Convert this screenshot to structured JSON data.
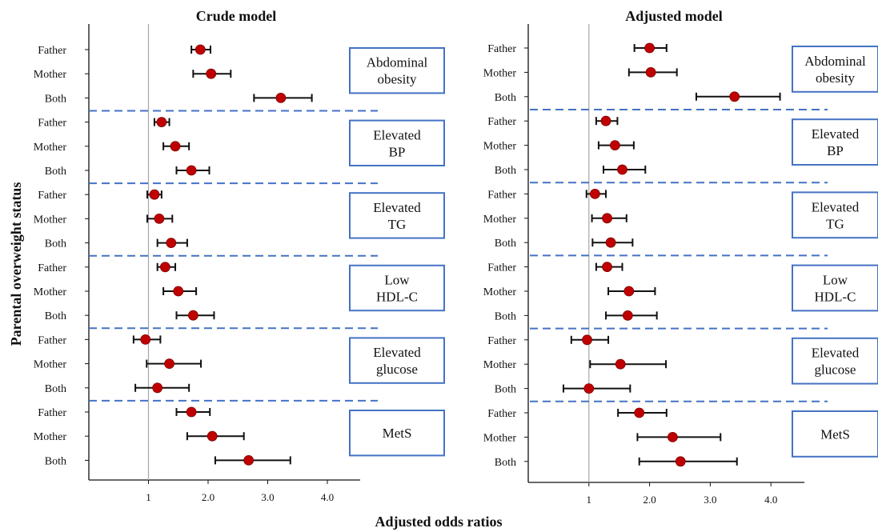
{
  "chart_data": [
    {
      "type": "forest",
      "title": "Crude model",
      "x_ticks": [
        "1",
        "2.0",
        "3.0",
        "4.0"
      ],
      "x_tick_values": [
        1,
        2,
        3,
        4
      ],
      "xlim": [
        0,
        4.5
      ],
      "reference_line": 1,
      "groups": [
        {
          "label_lines": [
            "Abdominal",
            "obesity"
          ],
          "rows": [
            {
              "label": "Father",
              "or": 1.87,
              "lo": 1.72,
              "hi": 2.04
            },
            {
              "label": "Mother",
              "or": 2.05,
              "lo": 1.75,
              "hi": 2.38
            },
            {
              "label": "Both",
              "or": 3.22,
              "lo": 2.77,
              "hi": 3.74
            }
          ]
        },
        {
          "label_lines": [
            "Elevated",
            "BP"
          ],
          "rows": [
            {
              "label": "Father",
              "or": 1.22,
              "lo": 1.1,
              "hi": 1.35
            },
            {
              "label": "Mother",
              "or": 1.45,
              "lo": 1.25,
              "hi": 1.68
            },
            {
              "label": "Both",
              "or": 1.72,
              "lo": 1.47,
              "hi": 2.02
            }
          ]
        },
        {
          "label_lines": [
            "Elevated",
            "TG"
          ],
          "rows": [
            {
              "label": "Father",
              "or": 1.1,
              "lo": 0.98,
              "hi": 1.22
            },
            {
              "label": "Mother",
              "or": 1.18,
              "lo": 0.98,
              "hi": 1.4
            },
            {
              "label": "Both",
              "or": 1.38,
              "lo": 1.15,
              "hi": 1.65
            }
          ]
        },
        {
          "label_lines": [
            "Low",
            "HDL-C"
          ],
          "rows": [
            {
              "label": "Father",
              "or": 1.28,
              "lo": 1.15,
              "hi": 1.45
            },
            {
              "label": "Mother",
              "or": 1.5,
              "lo": 1.25,
              "hi": 1.8
            },
            {
              "label": "Both",
              "or": 1.75,
              "lo": 1.47,
              "hi": 2.1
            }
          ]
        },
        {
          "label_lines": [
            "Elevated",
            "glucose"
          ],
          "rows": [
            {
              "label": "Father",
              "or": 0.95,
              "lo": 0.75,
              "hi": 1.2
            },
            {
              "label": "Mother",
              "or": 1.35,
              "lo": 0.97,
              "hi": 1.88
            },
            {
              "label": "Both",
              "or": 1.15,
              "lo": 0.78,
              "hi": 1.68
            }
          ]
        },
        {
          "label_lines": [
            "MetS"
          ],
          "rows": [
            {
              "label": "Father",
              "or": 1.72,
              "lo": 1.47,
              "hi": 2.03
            },
            {
              "label": "Mother",
              "or": 2.07,
              "lo": 1.65,
              "hi": 2.6
            },
            {
              "label": "Both",
              "or": 2.68,
              "lo": 2.12,
              "hi": 3.38
            }
          ]
        }
      ]
    },
    {
      "type": "forest",
      "title": "Adjusted model",
      "x_ticks": [
        "1",
        "2.0",
        "3.0",
        "4.0"
      ],
      "x_tick_values": [
        1,
        2,
        3,
        4
      ],
      "xlim": [
        0,
        4.5
      ],
      "reference_line": 1,
      "groups": [
        {
          "label_lines": [
            "Abdominal",
            "obesity"
          ],
          "rows": [
            {
              "label": "Father",
              "or": 2.0,
              "lo": 1.75,
              "hi": 2.28
            },
            {
              "label": "Mother",
              "or": 2.02,
              "lo": 1.66,
              "hi": 2.45
            },
            {
              "label": "Both",
              "or": 3.4,
              "lo": 2.77,
              "hi": 4.15
            }
          ]
        },
        {
          "label_lines": [
            "Elevated",
            "BP"
          ],
          "rows": [
            {
              "label": "Father",
              "or": 1.28,
              "lo": 1.12,
              "hi": 1.47
            },
            {
              "label": "Mother",
              "or": 1.43,
              "lo": 1.16,
              "hi": 1.74
            },
            {
              "label": "Both",
              "or": 1.55,
              "lo": 1.24,
              "hi": 1.93
            }
          ]
        },
        {
          "label_lines": [
            "Elevated",
            "TG"
          ],
          "rows": [
            {
              "label": "Father",
              "or": 1.1,
              "lo": 0.96,
              "hi": 1.28
            },
            {
              "label": "Mother",
              "or": 1.3,
              "lo": 1.05,
              "hi": 1.62
            },
            {
              "label": "Both",
              "or": 1.36,
              "lo": 1.06,
              "hi": 1.72
            }
          ]
        },
        {
          "label_lines": [
            "Low",
            "HDL-C"
          ],
          "rows": [
            {
              "label": "Father",
              "or": 1.3,
              "lo": 1.12,
              "hi": 1.55
            },
            {
              "label": "Mother",
              "or": 1.66,
              "lo": 1.32,
              "hi": 2.09
            },
            {
              "label": "Both",
              "or": 1.64,
              "lo": 1.28,
              "hi": 2.12
            }
          ]
        },
        {
          "label_lines": [
            "Elevated",
            "glucose"
          ],
          "rows": [
            {
              "label": "Father",
              "or": 0.97,
              "lo": 0.71,
              "hi": 1.32
            },
            {
              "label": "Mother",
              "or": 1.52,
              "lo": 1.02,
              "hi": 2.27
            },
            {
              "label": "Both",
              "or": 1.0,
              "lo": 0.58,
              "hi": 1.68
            }
          ]
        },
        {
          "label_lines": [
            "MetS"
          ],
          "rows": [
            {
              "label": "Father",
              "or": 1.83,
              "lo": 1.48,
              "hi": 2.28
            },
            {
              "label": "Mother",
              "or": 2.38,
              "lo": 1.8,
              "hi": 3.17
            },
            {
              "label": "Both",
              "or": 2.51,
              "lo": 1.83,
              "hi": 3.44
            }
          ]
        }
      ]
    }
  ],
  "y_axis_title": "Parental overweight status",
  "x_axis_title": "Adjusted odds ratios",
  "colors": {
    "marker": "#c00000",
    "box_border": "#4472c4",
    "separator": "#4472c4",
    "reference_line": "#a6a6a6",
    "axis": "#111111"
  }
}
